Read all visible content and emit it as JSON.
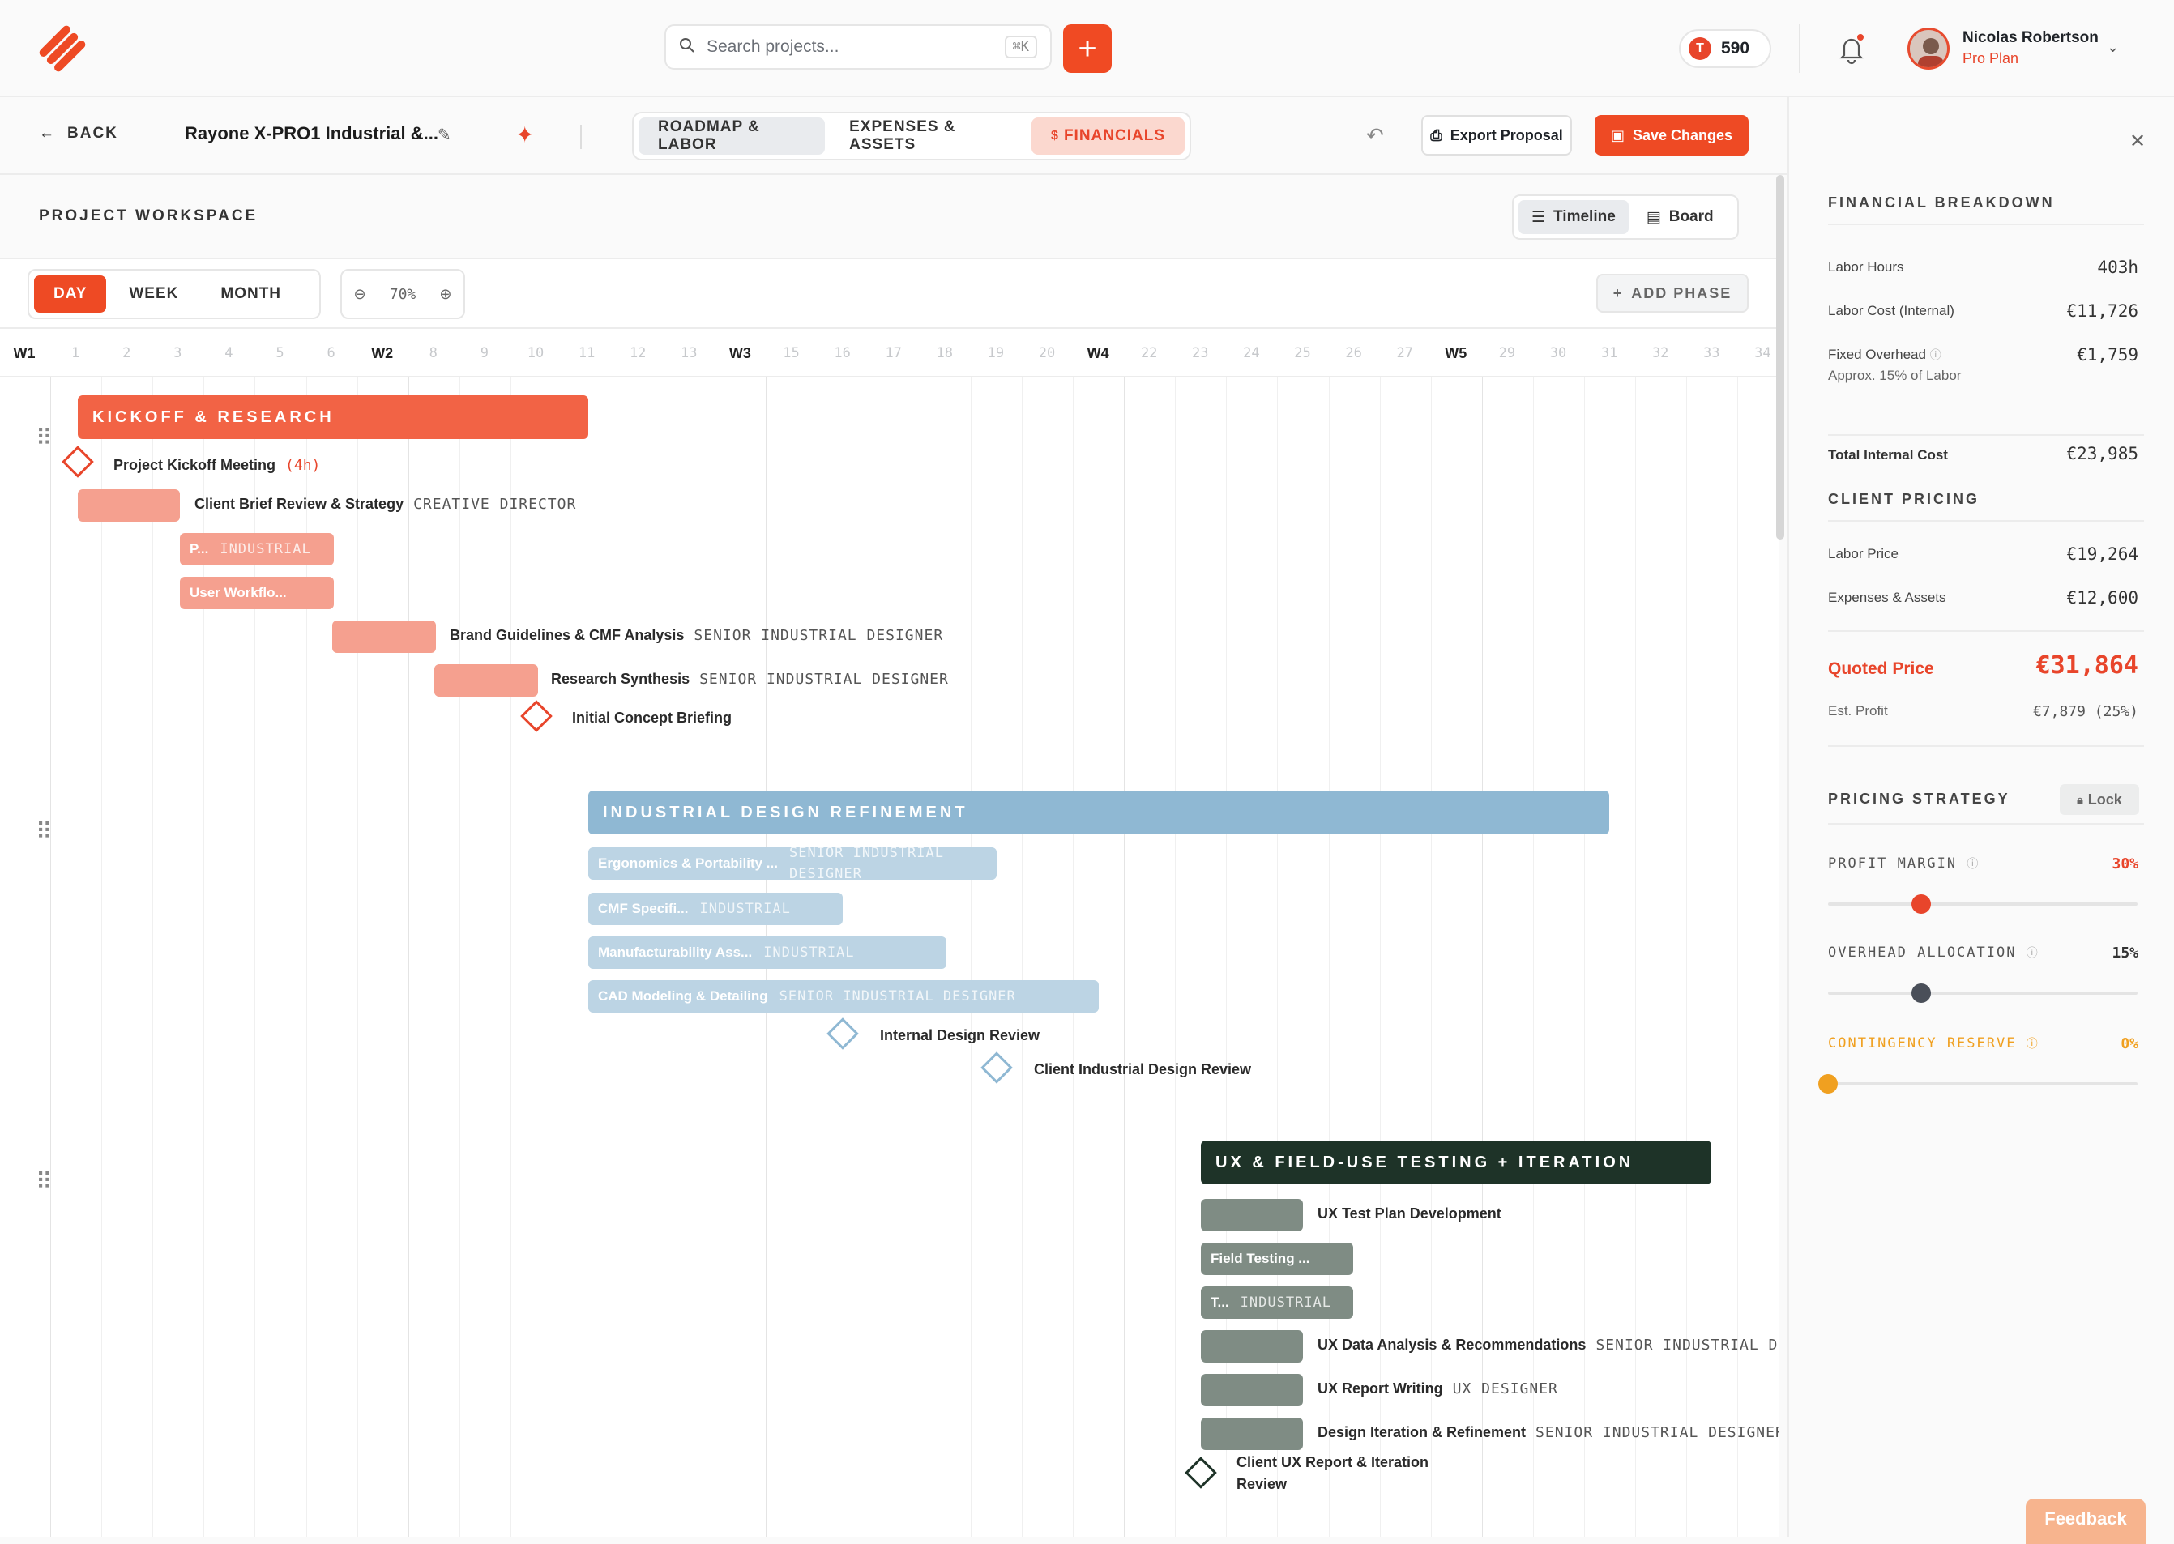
{
  "topbar": {
    "search_placeholder": "Search projects...",
    "search_shortcut": "⌘K",
    "tokens": "590",
    "token_badge": "T",
    "user_name": "Nicolas Robertson",
    "user_plan": "Pro Plan"
  },
  "subbar": {
    "back": "BACK",
    "project_title": "Rayone X-PRO1 Industrial &...",
    "tabs": [
      "ROADMAP & LABOR",
      "EXPENSES & ASSETS",
      "FINANCIALS"
    ],
    "export": "Export Proposal",
    "save": "Save Changes"
  },
  "workspace": {
    "title": "PROJECT WORKSPACE",
    "views": [
      "Timeline",
      "Board"
    ],
    "zoom_levels": [
      "DAY",
      "WEEK",
      "MONTH"
    ],
    "zoom_pct": "70%",
    "add_phase": "ADD PHASE"
  },
  "timeline": {
    "weeks": [
      "W1",
      "W2",
      "W3",
      "W4",
      "W5"
    ],
    "days": [
      "1",
      "2",
      "3",
      "4",
      "5",
      "6",
      "8",
      "9",
      "10",
      "11",
      "12",
      "13",
      "15",
      "16",
      "17",
      "18",
      "19",
      "20",
      "22",
      "23",
      "24",
      "25",
      "26",
      "27",
      "29",
      "30",
      "31",
      "32",
      "33",
      "34"
    ]
  },
  "phases": [
    {
      "name": "KICKOFF & RESEARCH",
      "color": "#f26345",
      "tasks": [
        {
          "type": "milestone",
          "label": "Project Kickoff Meeting",
          "hours": "(4h)"
        },
        {
          "type": "task",
          "label": "Client Brief Review & Strategy",
          "role": "CREATIVE DIRECTOR"
        },
        {
          "type": "task",
          "inner": "P...",
          "role": "INDUSTRIAL"
        },
        {
          "type": "task",
          "inner": "User Workflo..."
        },
        {
          "type": "task",
          "label": "Brand Guidelines & CMF Analysis",
          "role": "SENIOR INDUSTRIAL DESIGNER"
        },
        {
          "type": "task",
          "label": "Research Synthesis",
          "role": "SENIOR INDUSTRIAL DESIGNER"
        },
        {
          "type": "milestone",
          "label": "Initial Concept Briefing"
        }
      ]
    },
    {
      "name": "INDUSTRIAL DESIGN REFINEMENT",
      "color": "#8fb8d3",
      "tasks": [
        {
          "type": "task",
          "inner": "Ergonomics & Portability ...",
          "role": "SENIOR INDUSTRIAL DESIGNER"
        },
        {
          "type": "task",
          "inner": "CMF Specifi...",
          "role": "INDUSTRIAL"
        },
        {
          "type": "task",
          "inner": "Manufacturability Ass...",
          "role": "INDUSTRIAL"
        },
        {
          "type": "task",
          "inner": "CAD Modeling & Detailing",
          "role": "SENIOR INDUSTRIAL DESIGNER"
        },
        {
          "type": "milestone",
          "label": "Internal Design Review"
        },
        {
          "type": "milestone",
          "label": "Client Industrial Design Review"
        }
      ]
    },
    {
      "name": "UX & FIELD-USE TESTING + ITERATION",
      "color": "#1e3328",
      "tasks": [
        {
          "type": "task",
          "label": "UX Test Plan Development"
        },
        {
          "type": "task",
          "inner": "Field Testing ..."
        },
        {
          "type": "task",
          "inner": "T...",
          "role": "INDUSTRIAL"
        },
        {
          "type": "task",
          "label": "UX Data Analysis & Recommendations",
          "role": "SENIOR INDUSTRIAL DES"
        },
        {
          "type": "task",
          "label": "UX Report Writing",
          "role": "UX DESIGNER"
        },
        {
          "type": "task",
          "label": "Design Iteration & Refinement",
          "role": "SENIOR INDUSTRIAL DESIGNER"
        },
        {
          "type": "milestone",
          "label": "Client UX Report & Iteration Review"
        }
      ]
    }
  ],
  "financials": {
    "breakdown_title": "FINANCIAL BREAKDOWN",
    "labor_hours_label": "Labor Hours",
    "labor_hours": "403h",
    "labor_cost_label": "Labor Cost (Internal)",
    "labor_cost": "€11,726",
    "overhead_label": "Fixed Overhead",
    "overhead_note": "Approx. 15% of Labor",
    "overhead": "€1,759",
    "total_internal_label": "Total Internal Cost",
    "total_internal": "€23,985",
    "client_pricing_title": "CLIENT PRICING",
    "labor_price_label": "Labor Price",
    "labor_price": "€19,264",
    "expenses_label": "Expenses & Assets",
    "expenses": "€12,600",
    "quoted_label": "Quoted Price",
    "quoted": "€31,864",
    "profit_label": "Est. Profit",
    "profit": "€7,879 (25%)",
    "strategy_title": "PRICING STRATEGY",
    "lock": "Lock",
    "sliders": [
      {
        "label": "PROFIT MARGIN",
        "value": "30%",
        "level": 0.3,
        "color": "#e8452b"
      },
      {
        "label": "OVERHEAD ALLOCATION",
        "value": "15%",
        "level": 0.3,
        "color": "#4a4f59"
      },
      {
        "label": "CONTINGENCY RESERVE",
        "value": "0%",
        "level": 0.0,
        "color": "#f0a020"
      }
    ]
  },
  "feedback": "Feedback"
}
